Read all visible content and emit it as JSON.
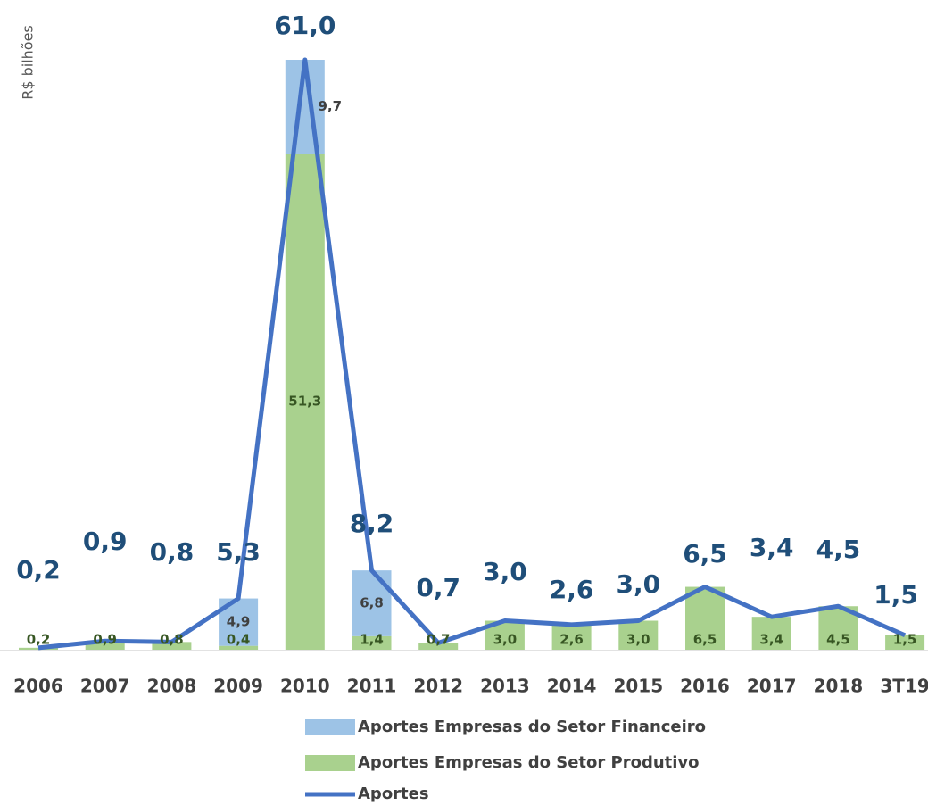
{
  "chart_data": {
    "type": "bar+line",
    "y_label": "R$ bilhões",
    "categories": [
      "2006",
      "2007",
      "2008",
      "2009",
      "2010",
      "2011",
      "2012",
      "2013",
      "2014",
      "2015",
      "2016",
      "2017",
      "2018",
      "3T19"
    ],
    "series": [
      {
        "name": "Aportes Empresas do Setor Financeiro",
        "type": "bar",
        "color": "#9dc3e6",
        "label_color": "#404040",
        "values": [
          null,
          null,
          null,
          4.9,
          9.7,
          6.8,
          null,
          null,
          null,
          null,
          null,
          null,
          null,
          null
        ],
        "value_labels": [
          null,
          null,
          null,
          "4,9",
          "9,7",
          "6,8",
          null,
          null,
          null,
          null,
          null,
          null,
          null,
          null
        ]
      },
      {
        "name": "Aportes  Empresas do Setor Produtivo",
        "type": "bar",
        "color": "#a9d18e",
        "label_color": "#375623",
        "values": [
          0.2,
          0.9,
          0.8,
          0.4,
          51.3,
          1.4,
          0.7,
          3.0,
          2.6,
          3.0,
          6.5,
          3.4,
          4.5,
          1.5
        ],
        "value_labels": [
          "0,2",
          "0,9",
          "0,8",
          "0,4",
          "51,3",
          "1,4",
          "0,7",
          "3,0",
          "2,6",
          "3,0",
          "6,5",
          "3,4",
          "4,5",
          "1,5"
        ]
      },
      {
        "name": "Aportes",
        "type": "line",
        "color": "#4472c4",
        "label_color": "#1f4e79",
        "values": [
          0.2,
          0.9,
          0.8,
          5.3,
          61.0,
          8.2,
          0.7,
          3.0,
          2.6,
          3.0,
          6.5,
          3.4,
          4.5,
          1.5
        ],
        "value_labels": [
          "0,2",
          "0,9",
          "0,8",
          "5,3",
          "61,0",
          "8,2",
          "0,7",
          "3,0",
          "2,6",
          "3,0",
          "6,5",
          "3,4",
          "4,5",
          "1,5"
        ]
      }
    ]
  }
}
